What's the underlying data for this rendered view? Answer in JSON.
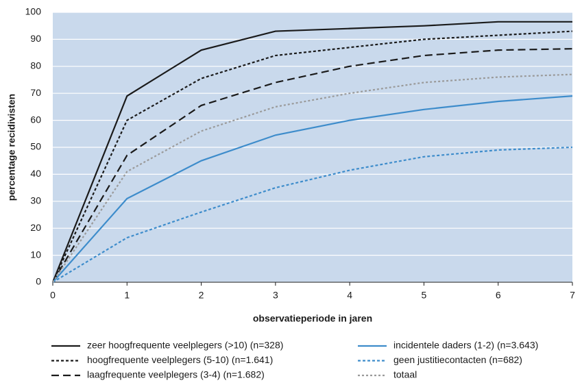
{
  "chart_data": {
    "type": "line",
    "xlabel": "observatieperiode in jaren",
    "ylabel": "percentage recidivisten",
    "x": [
      0,
      1,
      2,
      3,
      4,
      5,
      6,
      7
    ],
    "xlim": [
      0,
      7
    ],
    "xticks": [
      0,
      1,
      2,
      3,
      4,
      5,
      6,
      7
    ],
    "ylim": [
      0,
      100
    ],
    "yticks": [
      0,
      10,
      20,
      30,
      40,
      50,
      60,
      70,
      80,
      90,
      100
    ],
    "grid": true,
    "series": [
      {
        "name": "zeer hoogfrequente veelplegers (>10) (n=328)",
        "color": "#1a1a1a",
        "dash": "solid",
        "values": [
          0,
          69,
          86,
          93,
          94,
          95,
          96.5,
          96.5
        ]
      },
      {
        "name": "hoogfrequente veelplegers (5-10) (n=1.641)",
        "color": "#1a1a1a",
        "dash": "short",
        "values": [
          0,
          60,
          75.5,
          84,
          87,
          90,
          91.5,
          93
        ]
      },
      {
        "name": "laagfrequente veelplegers (3-4) (n=1.682)",
        "color": "#1a1a1a",
        "dash": "long",
        "values": [
          0,
          47,
          65.5,
          74,
          80,
          84,
          86,
          86.5
        ]
      },
      {
        "name": "incidentele daders (1-2) (n=3.643)",
        "color": "#3d8ccb",
        "dash": "solid",
        "values": [
          0,
          31,
          45,
          54.5,
          60,
          64,
          67,
          69
        ]
      },
      {
        "name": "geen justitiecontacten (n=682)",
        "color": "#3d8ccb",
        "dash": "short",
        "values": [
          0,
          16.5,
          26,
          35,
          41.5,
          46.5,
          49,
          50
        ]
      },
      {
        "name": "totaal",
        "color": "#9a9a9a",
        "dash": "dot",
        "values": [
          0,
          41,
          56,
          65,
          70,
          74,
          76,
          77
        ]
      }
    ]
  }
}
